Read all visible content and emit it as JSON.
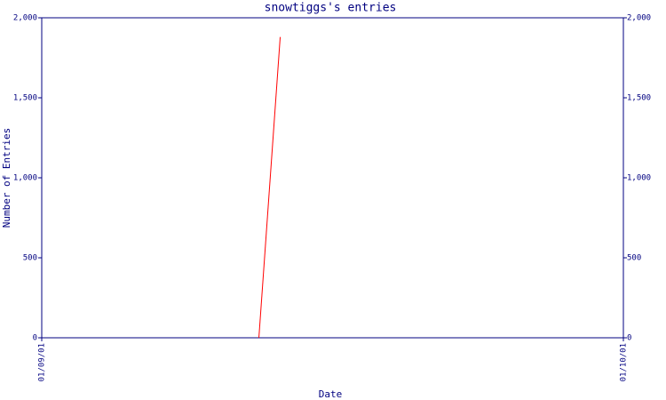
{
  "chart_data": {
    "type": "line",
    "title": "snowtiggs's entries",
    "x_label": "Date",
    "y_label": "Number of Entries",
    "x": [
      11.2,
      12.3
    ],
    "series": [
      {
        "name": "entries",
        "color": "#ff0000",
        "values": [
          0,
          1880
        ]
      }
    ],
    "xlim": [
      0,
      30
    ],
    "xticks": [
      {
        "value": 0,
        "label": "01/09/01"
      },
      {
        "value": 30,
        "label": "01/10/01"
      }
    ],
    "ylim": [
      0,
      2000
    ],
    "yticks": [
      0,
      500,
      {
        "value": 1000,
        "label": "1,000"
      },
      {
        "value": 1500,
        "label": "1,500"
      },
      {
        "value": 2000,
        "label": "2,000"
      }
    ],
    "axis_color": "#000080"
  }
}
